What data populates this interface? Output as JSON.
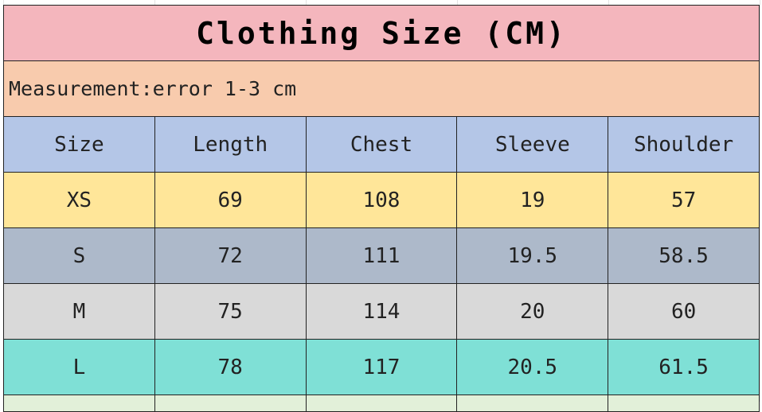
{
  "title": "Clothing Size (CM)",
  "note": "Measurement:error 1-3 cm",
  "columns": [
    "Size",
    "Length",
    "Chest",
    "Sleeve",
    "Shoulder"
  ],
  "rows": [
    [
      "XS",
      "69",
      "108",
      "19",
      "57"
    ],
    [
      "S",
      "72",
      "111",
      "19.5",
      "58.5"
    ],
    [
      "M",
      "75",
      "114",
      "20",
      "60"
    ],
    [
      "L",
      "78",
      "117",
      "20.5",
      "61.5"
    ]
  ],
  "colors": {
    "title": "#f4b6bd",
    "note": "#f8cbad",
    "header": "#b4c6e7",
    "XS": "#ffe699",
    "S": "#adb9ca",
    "M": "#d9d9d9",
    "L": "#7fe0d6"
  }
}
